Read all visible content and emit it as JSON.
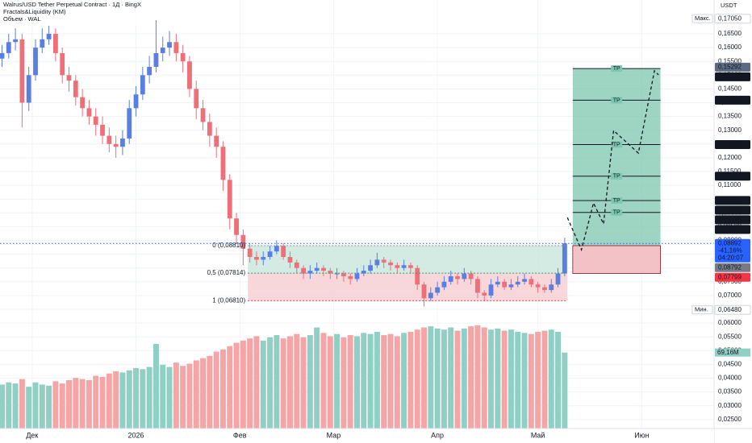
{
  "chart_data": {
    "type": "candlestick",
    "title": "Walrus/USD Tether Perpetual Contract · 1Д · BingX",
    "indicators": [
      "Fractals&Liquidity (KM)",
      "Объем · WAL"
    ],
    "currency": "USDT",
    "up_color": "#5b7fe0",
    "down_color": "#ef6f78",
    "volume_up_color": "#8fcfc4",
    "volume_down_color": "#f5a5a5",
    "xlim": [
      -0.3,
      106.3
    ],
    "xticks": [
      {
        "value": 4.5,
        "label": "Дек"
      },
      {
        "value": 20,
        "label": "2026"
      },
      {
        "value": 35.5,
        "label": "Фев"
      },
      {
        "value": 49.5,
        "label": "Мар"
      },
      {
        "value": 65,
        "label": "Апр"
      },
      {
        "value": 80,
        "label": "Май"
      },
      {
        "value": 95.5,
        "label": "Июн"
      }
    ],
    "ylim": [
      0.02173,
      0.17728
    ],
    "yticks": [
      {
        "value": 0.165,
        "label": "0,16500"
      },
      {
        "value": 0.16,
        "label": "0,16000"
      },
      {
        "value": 0.155,
        "label": "0,15500"
      },
      {
        "value": 0.15,
        "label": "0,15000"
      },
      {
        "value": 0.145,
        "label": "0,14500"
      },
      {
        "value": 0.14,
        "label": "0,14000"
      },
      {
        "value": 0.135,
        "label": "0,13500"
      },
      {
        "value": 0.13,
        "label": "0,13000"
      },
      {
        "value": 0.125,
        "label": "0,12500"
      },
      {
        "value": 0.12,
        "label": "0,12000"
      },
      {
        "value": 0.115,
        "label": "0,11500"
      },
      {
        "value": 0.11,
        "label": "0,11000"
      },
      {
        "value": 0.105,
        "label": "0,10500"
      },
      {
        "value": 0.1,
        "label": "0,10000"
      },
      {
        "value": 0.095,
        "label": "0,09500"
      },
      {
        "value": 0.09,
        "label": "0,09000"
      },
      {
        "value": 0.085,
        "label": "0,08500"
      },
      {
        "value": 0.08,
        "label": "0,08000"
      },
      {
        "value": 0.075,
        "label": "0,07500"
      },
      {
        "value": 0.07,
        "label": "0,07000"
      },
      {
        "value": 0.065,
        "label": "0,06500"
      },
      {
        "value": 0.06,
        "label": "0,06000"
      },
      {
        "value": 0.055,
        "label": "0,05500"
      },
      {
        "value": 0.05,
        "label": "0,05000"
      },
      {
        "value": 0.045,
        "label": "0,04500"
      },
      {
        "value": 0.04,
        "label": "0,04000"
      },
      {
        "value": 0.035,
        "label": "0,03500"
      },
      {
        "value": 0.03,
        "label": "0,03000"
      },
      {
        "value": 0.025,
        "label": "0,02500"
      }
    ],
    "grid": true,
    "ohlc": {
      "open": [
        0.156,
        0.158,
        0.162,
        0.163,
        0.14,
        0.15,
        0.16,
        0.163,
        0.165,
        0.158,
        0.15,
        0.148,
        0.142,
        0.138,
        0.135,
        0.132,
        0.128,
        0.125,
        0.124,
        0.127,
        0.138,
        0.143,
        0.15,
        0.153,
        0.158,
        0.16,
        0.162,
        0.158,
        0.155,
        0.145,
        0.138,
        0.133,
        0.128,
        0.124,
        0.112,
        0.098,
        0.092,
        0.087,
        0.084,
        0.083,
        0.084,
        0.086,
        0.088,
        0.084,
        0.082,
        0.08,
        0.078,
        0.079,
        0.08,
        0.079,
        0.078,
        0.078,
        0.077,
        0.076,
        0.078,
        0.079,
        0.081,
        0.083,
        0.082,
        0.081,
        0.08,
        0.081,
        0.08,
        0.074,
        0.069,
        0.071,
        0.073,
        0.075,
        0.077,
        0.076,
        0.078,
        0.076,
        0.071,
        0.07,
        0.074,
        0.075,
        0.073,
        0.074,
        0.075,
        0.076,
        0.074,
        0.073,
        0.072,
        0.074,
        0.078
      ],
      "high": [
        0.161,
        0.165,
        0.167,
        0.165,
        0.153,
        0.163,
        0.167,
        0.168,
        0.167,
        0.16,
        0.153,
        0.15,
        0.145,
        0.141,
        0.138,
        0.135,
        0.131,
        0.128,
        0.13,
        0.141,
        0.146,
        0.153,
        0.157,
        0.17,
        0.164,
        0.166,
        0.165,
        0.161,
        0.157,
        0.148,
        0.141,
        0.136,
        0.131,
        0.126,
        0.114,
        0.1,
        0.094,
        0.089,
        0.086,
        0.086,
        0.088,
        0.09,
        0.089,
        0.086,
        0.083,
        0.081,
        0.081,
        0.082,
        0.081,
        0.08,
        0.08,
        0.079,
        0.078,
        0.08,
        0.081,
        0.083,
        0.0855,
        0.084,
        0.083,
        0.082,
        0.083,
        0.082,
        0.081,
        0.075,
        0.073,
        0.075,
        0.077,
        0.079,
        0.078,
        0.08,
        0.079,
        0.077,
        0.072,
        0.076,
        0.077,
        0.076,
        0.076,
        0.077,
        0.078,
        0.077,
        0.075,
        0.074,
        0.076,
        0.08,
        0.091
      ],
      "low": [
        0.153,
        0.156,
        0.159,
        0.131,
        0.137,
        0.148,
        0.158,
        0.161,
        0.155,
        0.147,
        0.144,
        0.139,
        0.135,
        0.132,
        0.128,
        0.125,
        0.122,
        0.12,
        0.121,
        0.125,
        0.135,
        0.141,
        0.147,
        0.151,
        0.155,
        0.157,
        0.155,
        0.151,
        0.142,
        0.134,
        0.13,
        0.124,
        0.12,
        0.108,
        0.094,
        0.089,
        0.081,
        0.082,
        0.081,
        0.081,
        0.083,
        0.085,
        0.083,
        0.08,
        0.078,
        0.076,
        0.076,
        0.078,
        0.077,
        0.076,
        0.076,
        0.075,
        0.074,
        0.075,
        0.077,
        0.078,
        0.08,
        0.08,
        0.079,
        0.078,
        0.079,
        0.078,
        0.072,
        0.066,
        0.068,
        0.07,
        0.072,
        0.074,
        0.074,
        0.075,
        0.074,
        0.069,
        0.068,
        0.069,
        0.073,
        0.072,
        0.072,
        0.073,
        0.074,
        0.073,
        0.071,
        0.071,
        0.071,
        0.073,
        0.077
      ],
      "close": [
        0.158,
        0.162,
        0.163,
        0.14,
        0.15,
        0.16,
        0.163,
        0.165,
        0.158,
        0.15,
        0.148,
        0.142,
        0.138,
        0.135,
        0.132,
        0.128,
        0.125,
        0.124,
        0.127,
        0.138,
        0.143,
        0.15,
        0.153,
        0.158,
        0.16,
        0.162,
        0.158,
        0.155,
        0.145,
        0.138,
        0.133,
        0.128,
        0.124,
        0.112,
        0.098,
        0.092,
        0.087,
        0.084,
        0.083,
        0.084,
        0.086,
        0.088,
        0.084,
        0.082,
        0.08,
        0.078,
        0.079,
        0.08,
        0.079,
        0.078,
        0.078,
        0.077,
        0.076,
        0.078,
        0.079,
        0.081,
        0.083,
        0.082,
        0.081,
        0.08,
        0.081,
        0.08,
        0.074,
        0.069,
        0.071,
        0.073,
        0.075,
        0.077,
        0.076,
        0.078,
        0.076,
        0.071,
        0.07,
        0.074,
        0.075,
        0.073,
        0.074,
        0.075,
        0.076,
        0.074,
        0.073,
        0.072,
        0.074,
        0.078,
        0.08892
      ]
    },
    "volume": {
      "values": [
        40,
        42,
        41,
        45,
        38,
        42,
        40,
        39,
        43,
        41,
        44,
        46,
        45,
        44,
        48,
        47,
        50,
        52,
        51,
        53,
        55,
        54,
        56,
        77,
        58,
        56,
        60,
        57,
        59,
        62,
        64,
        66,
        70,
        72,
        75,
        78,
        80,
        82,
        84,
        80,
        83,
        85,
        82,
        84,
        86,
        83,
        85,
        92,
        87,
        84,
        86,
        83,
        85,
        84,
        87,
        86,
        88,
        85,
        86,
        84,
        87,
        88,
        90,
        92,
        93,
        91,
        90,
        92,
        89,
        91,
        93,
        94,
        92,
        90,
        91,
        89,
        90,
        88,
        87,
        86,
        88,
        89,
        90,
        88,
        69.16
      ],
      "last_label": "69,16M",
      "lim": [
        0,
        390
      ]
    },
    "fib": {
      "x": [
        36.7,
        84.4
      ],
      "levels": [
        {
          "value": 0.0881,
          "label": "0 (0,08810)",
          "color": "#8a8f99"
        },
        {
          "value": 0.07814,
          "label": "0,5 (0,07814)",
          "color": "#2e9e6a"
        },
        {
          "value": 0.0681,
          "label": "1 (0,06810)",
          "color": "#e0414c"
        }
      ]
    },
    "position": {
      "x": [
        85.2,
        98.3
      ],
      "target": 0.1524,
      "entry": 0.0881,
      "stop": 0.07799
    },
    "targets": {
      "label": "TP",
      "values": [
        0.1524,
        0.1409,
        0.1248,
        0.11332,
        0.10449,
        0.10015
      ]
    },
    "projection": {
      "x": [
        84.4,
        86.5,
        88.3,
        89.8,
        91.3,
        95.0,
        97.4,
        98.0
      ],
      "values": [
        0.0983,
        0.0866,
        0.1036,
        0.096,
        0.1299,
        0.1217,
        0.1516,
        0.1501
      ]
    },
    "price_markers": [
      {
        "value": 0.1705,
        "label": "0,17050",
        "note": "Макс.",
        "color": "#ffffff"
      },
      {
        "value": 0.15292,
        "label": "0,15292",
        "color": "#5d6b82"
      },
      {
        "value": 0.1524,
        "label": "0,15240",
        "color": "#131722"
      },
      {
        "value": 0.1409,
        "label": "0,14090",
        "color": "#131722"
      },
      {
        "value": 0.1248,
        "label": "0,12480",
        "color": "#131722"
      },
      {
        "value": 0.11332,
        "label": "0,11332",
        "color": "#131722"
      },
      {
        "value": 0.10453,
        "label": "0,10453",
        "color": "#131722"
      },
      {
        "value": 0.10449,
        "label": "0,10449",
        "color": "#131722"
      },
      {
        "value": 0.1002,
        "label": "0,10020",
        "color": "#131722"
      },
      {
        "value": 0.10015,
        "label": "0,10015",
        "color": "#131722"
      },
      {
        "value": 0.08892,
        "label": "0,08892",
        "extra": [
          "-41,16%",
          "04:20:07"
        ],
        "color": "#2962ff",
        "dotted": true
      },
      {
        "value": 0.08792,
        "label": "0,08792",
        "color": "#787b86"
      },
      {
        "value": 0.07799,
        "label": "0,07799",
        "color": "#f23645"
      },
      {
        "value": 0.0648,
        "label": "0,06480",
        "note": "Мин.",
        "color": "#ffffff"
      }
    ]
  }
}
